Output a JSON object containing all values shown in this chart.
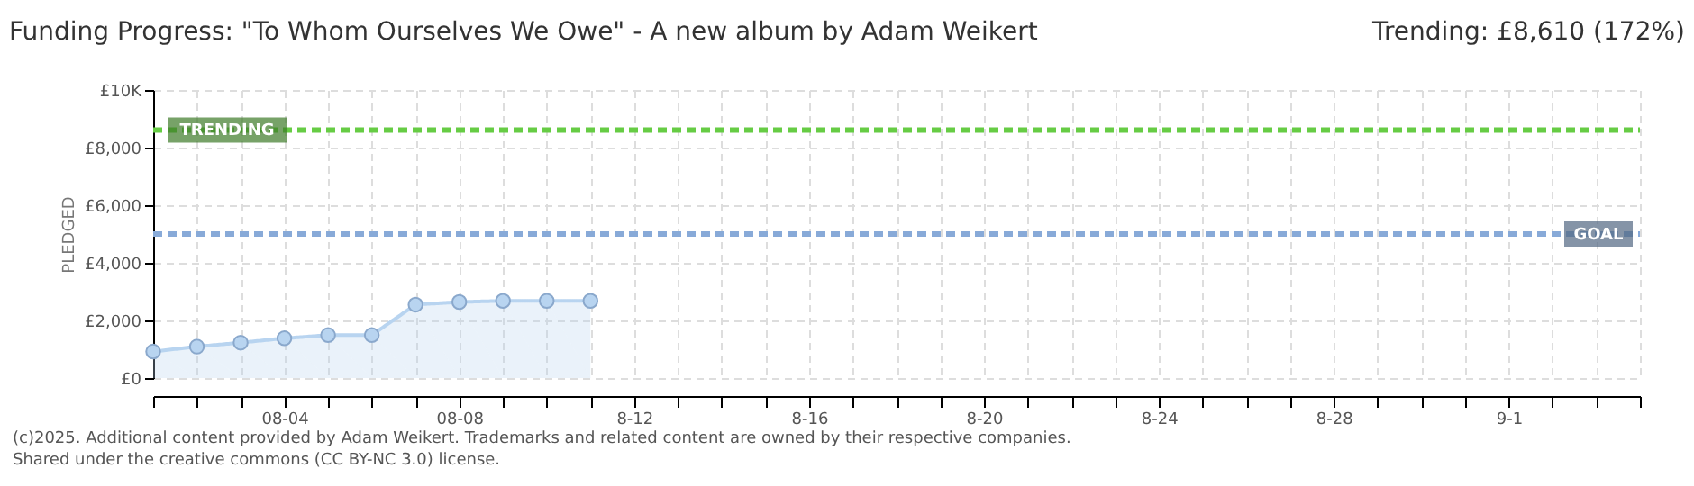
{
  "chart_data": {
    "type": "area",
    "title": "Funding Progress: \"To Whom Ourselves We Owe\" - A new album by Adam Weikert",
    "ylabel": "PLEDGED",
    "x": [
      "2025-08-01",
      "2025-08-02",
      "2025-08-03",
      "2025-08-04",
      "2025-08-05",
      "2025-08-06",
      "2025-08-07",
      "2025-08-08",
      "2025-08-09",
      "2025-08-10",
      "2025-08-11"
    ],
    "series": [
      {
        "color": "#b8d4f0",
        "values": [
          920,
          1090,
          1230,
          1380,
          1490,
          1490,
          2550,
          2640,
          2680,
          2680,
          2680
        ]
      }
    ],
    "marker": "circle",
    "grid": true,
    "xlim": [
      "2025-08-01",
      "2025-09-04"
    ],
    "xticks": [
      {
        "value": "2025-08-01",
        "label": null
      },
      {
        "value": "2025-08-02",
        "label": null
      },
      {
        "value": "2025-08-03",
        "label": null
      },
      {
        "value": "2025-08-04",
        "label": "08-04"
      },
      {
        "value": "2025-08-05",
        "label": null
      },
      {
        "value": "2025-08-06",
        "label": null
      },
      {
        "value": "2025-08-07",
        "label": null
      },
      {
        "value": "2025-08-08",
        "label": "08-08"
      },
      {
        "value": "2025-08-09",
        "label": null
      },
      {
        "value": "2025-08-10",
        "label": null
      },
      {
        "value": "2025-08-11",
        "label": null
      },
      {
        "value": "2025-08-12",
        "label": "8-12"
      },
      {
        "value": "2025-08-13",
        "label": null
      },
      {
        "value": "2025-08-14",
        "label": null
      },
      {
        "value": "2025-08-15",
        "label": null
      },
      {
        "value": "2025-08-16",
        "label": "8-16"
      },
      {
        "value": "2025-08-17",
        "label": null
      },
      {
        "value": "2025-08-18",
        "label": null
      },
      {
        "value": "2025-08-19",
        "label": null
      },
      {
        "value": "2025-08-20",
        "label": "8-20"
      },
      {
        "value": "2025-08-21",
        "label": null
      },
      {
        "value": "2025-08-22",
        "label": null
      },
      {
        "value": "2025-08-23",
        "label": null
      },
      {
        "value": "2025-08-24",
        "label": "8-24"
      },
      {
        "value": "2025-08-25",
        "label": null
      },
      {
        "value": "2025-08-26",
        "label": null
      },
      {
        "value": "2025-08-27",
        "label": null
      },
      {
        "value": "2025-08-28",
        "label": "8-28"
      },
      {
        "value": "2025-08-29",
        "label": null
      },
      {
        "value": "2025-08-30",
        "label": null
      },
      {
        "value": "2025-08-31",
        "label": null
      },
      {
        "value": "2025-09-01",
        "label": "9-1"
      },
      {
        "value": "2025-09-02",
        "label": null
      },
      {
        "value": "2025-09-03",
        "label": null
      },
      {
        "value": "2025-09-04",
        "label": null
      }
    ],
    "ylim": [
      0,
      10000
    ],
    "yticks": [
      {
        "value": 0,
        "label": "£0"
      },
      {
        "value": 2000,
        "label": "£2,000"
      },
      {
        "value": 4000,
        "label": "£4,000"
      },
      {
        "value": 6000,
        "label": "£6,000"
      },
      {
        "value": 8000,
        "label": "£8,000"
      },
      {
        "value": 10000,
        "label": "£10K"
      }
    ],
    "ref_lines": [
      {
        "axis": "y",
        "value": 8610,
        "label": "TRENDING",
        "color": "#66cc44",
        "line_style": "dashed"
      },
      {
        "axis": "y",
        "value": 5000,
        "label": "GOAL",
        "color": "#88aad8",
        "line_style": "dashed"
      }
    ],
    "annotations": [
      "Trending: £8,610 (172%)",
      "(c)2025. Additional content provided by Adam Weikert. Trademarks and related content are owned by their respective companies.",
      "Shared under the creative commons (CC BY-NC 3.0) license."
    ]
  }
}
